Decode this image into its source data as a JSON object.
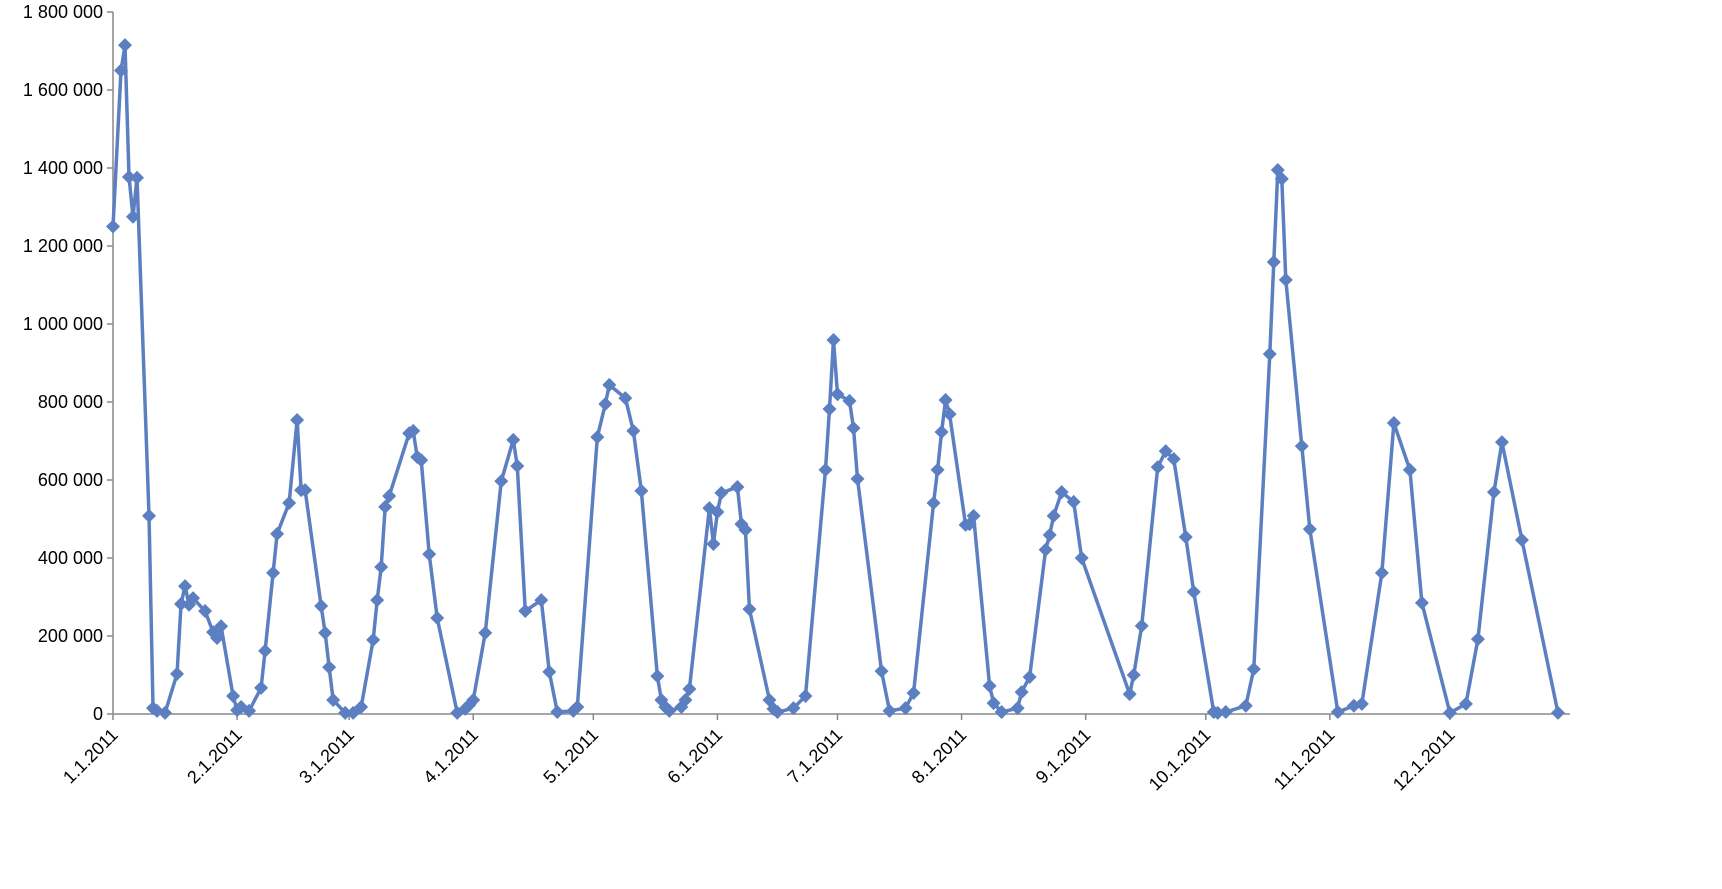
{
  "chart_data": {
    "type": "line",
    "x": [
      "1.1.2011",
      "1.3.2011",
      "1.4.2011",
      "1.5.2011",
      "1.6.2011",
      "1.7.2011",
      "1.10.2011",
      "1.11.2011",
      "1.12.2011",
      "1.14.2011",
      "1.17.2011",
      "1.18.2011",
      "1.19.2011",
      "1.20.2011",
      "1.21.2011",
      "1.24.2011",
      "1.26.2011",
      "1.27.2011",
      "1.28.2011",
      "1.31.2011",
      "2.1.2011",
      "2.2.2011",
      "2.4.2011",
      "2.7.2011",
      "2.8.2011",
      "2.10.2011",
      "2.11.2011",
      "2.14.2011",
      "2.16.2011",
      "2.17.2011",
      "2.18.2011",
      "2.22.2011",
      "2.23.2011",
      "2.24.2011",
      "2.25.2011",
      "2.28.2011",
      "3.2.2011",
      "3.4.2011",
      "3.7.2011",
      "3.8.2011",
      "3.9.2011",
      "3.10.2011",
      "3.11.2011",
      "3.16.2011",
      "3.17.2011",
      "3.18.2011",
      "3.19.2011",
      "3.21.2011",
      "3.23.2011",
      "3.28.2011",
      "3.30.2011",
      "3.31.2011",
      "4.1.2011",
      "4.4.2011",
      "4.8.2011",
      "4.11.2011",
      "4.12.2011",
      "4.14.2011",
      "4.18.2011",
      "4.20.2011",
      "4.22.2011",
      "4.26.2011",
      "4.27.2011",
      "5.2.2011",
      "5.4.2011",
      "5.5.2011",
      "5.9.2011",
      "5.11.2011",
      "5.13.2011",
      "5.17.2011",
      "5.18.2011",
      "5.19.2011",
      "5.20.2011",
      "5.23.2011",
      "5.24.2011",
      "5.25.2011",
      "5.30.2011",
      "5.31.2011",
      "6.1.2011",
      "6.2.2011",
      "6.6.2011",
      "6.7.2011",
      "6.8.2011",
      "6.9.2011",
      "6.14.2011",
      "6.15.2011",
      "6.16.2011",
      "6.20.2011",
      "6.23.2011",
      "6.28.2011",
      "6.29.2011",
      "6.30.2011",
      "7.1.2011",
      "7.4.2011",
      "7.5.2011",
      "7.6.2011",
      "7.12.2011",
      "7.14.2011",
      "7.18.2011",
      "7.20.2011",
      "7.25.2011",
      "7.26.2011",
      "7.27.2011",
      "7.28.2011",
      "7.29.2011",
      "8.2.2011",
      "8.3.2011",
      "8.4.2011",
      "8.8.2011",
      "8.9.2011",
      "8.11.2011",
      "8.15.2011",
      "8.16.2011",
      "8.18.2011",
      "8.22.2011",
      "8.23.2011",
      "8.24.2011",
      "8.26.2011",
      "8.29.2011",
      "8.31.2011",
      "9.12.2011",
      "9.13.2011",
      "9.15.2011",
      "9.19.2011",
      "9.21.2011",
      "9.23.2011",
      "9.26.2011",
      "9.28.2011",
      "10.3.2011",
      "10.4.2011",
      "10.6.2011",
      "10.11.2011",
      "10.13.2011",
      "10.17.2011",
      "10.18.2011",
      "10.19.2011",
      "10.20.2011",
      "10.21.2011",
      "10.25.2011",
      "10.27.2011",
      "11.3.2011",
      "11.7.2011",
      "11.9.2011",
      "11.14.2011",
      "11.17.2011",
      "11.21.2011",
      "11.24.2011",
      "12.1.2011",
      "12.5.2011",
      "12.8.2011",
      "12.12.2011",
      "12.14.2011",
      "12.19.2011",
      "12.28.2011"
    ],
    "values": [
      1250000,
      1650000,
      1715000,
      1377000,
      1275000,
      1375000,
      508000,
      15000,
      8000,
      3000,
      103000,
      282000,
      328000,
      280000,
      297000,
      264000,
      210000,
      195000,
      225000,
      46000,
      10000,
      18000,
      8000,
      67000,
      162000,
      362000,
      462000,
      541000,
      754000,
      574000,
      574000,
      277000,
      208000,
      120000,
      36000,
      3000,
      3000,
      18000,
      190000,
      292000,
      377000,
      531000,
      559000,
      720000,
      726000,
      659000,
      651000,
      410000,
      246000,
      3000,
      13000,
      23000,
      36000,
      208000,
      597000,
      703000,
      636000,
      264000,
      292000,
      108000,
      5000,
      8000,
      18000,
      710000,
      795000,
      844000,
      810000,
      726000,
      572000,
      97000,
      36000,
      18000,
      8000,
      18000,
      36000,
      64000,
      528000,
      436000,
      518000,
      567000,
      582000,
      487000,
      472000,
      269000,
      36000,
      13000,
      5000,
      15000,
      46000,
      626000,
      782000,
      959000,
      820000,
      803000,
      733000,
      603000,
      110000,
      8000,
      15000,
      54000,
      541000,
      626000,
      723000,
      805000,
      769000,
      485000,
      487000,
      508000,
      72000,
      28000,
      5000,
      15000,
      56000,
      95000,
      421000,
      459000,
      508000,
      569000,
      544000,
      400000,
      51000,
      100000,
      226000,
      633000,
      674000,
      654000,
      454000,
      313000,
      5000,
      3000,
      5000,
      21000,
      115000,
      923000,
      1159000,
      1395000,
      1372000,
      1113000,
      687000,
      474000,
      5000,
      21000,
      26000,
      362000,
      746000,
      626000,
      285000,
      3000,
      26000,
      192000,
      569000,
      697000,
      446000,
      3000
    ],
    "color": "#5b7fc1",
    "xlim": [
      "1.1.2011",
      "12.31.2011"
    ],
    "xticks": [
      "1.1.2011",
      "2.1.2011",
      "3.1.2011",
      "4.1.2011",
      "5.1.2011",
      "6.1.2011",
      "7.1.2011",
      "8.1.2011",
      "9.1.2011",
      "10.1.2011",
      "11.1.2011",
      "12.1.2011"
    ],
    "ylim": [
      0,
      1800000
    ],
    "yticks": [
      0,
      {
        "value": 200000,
        "label": "200 000"
      },
      {
        "value": 400000,
        "label": "400 000"
      },
      {
        "value": 600000,
        "label": "600 000"
      },
      {
        "value": 800000,
        "label": "800 000"
      },
      {
        "value": 1000000,
        "label": "1 000 000"
      },
      {
        "value": 1200000,
        "label": "1 200 000"
      },
      {
        "value": 1400000,
        "label": "1 400 000"
      },
      {
        "value": 1600000,
        "label": "1 600 000"
      },
      {
        "value": 1800000,
        "label": "1 800 000"
      }
    ],
    "grid": false
  }
}
